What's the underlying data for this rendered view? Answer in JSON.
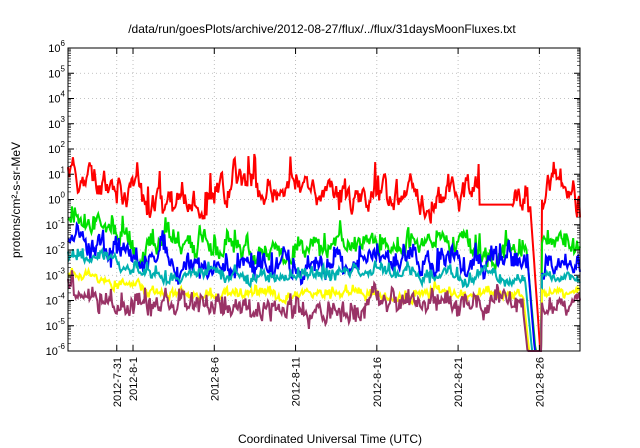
{
  "chart_data": {
    "type": "line",
    "title": "/data/run/goesPlots/archive/2012-08-27/flux/../flux/31daysMoonFluxes.txt",
    "xlabel": "Coordinated Universal Time (UTC)",
    "ylabel": "protons/cm²-s-sr-MeV",
    "yscale": "log",
    "ylim": [
      1e-06,
      1000000.0
    ],
    "ytick_exponents": [
      -6,
      -5,
      -4,
      -3,
      -2,
      -1,
      0,
      1,
      2,
      3,
      4,
      5,
      6
    ],
    "xlim_days": [
      -3.0,
      28.5
    ],
    "x_ticks": [
      {
        "day": 0,
        "label": "2012-7-31"
      },
      {
        "day": 1,
        "label": "2012-8-1"
      },
      {
        "day": 6,
        "label": "2012-8-6"
      },
      {
        "day": 11,
        "label": "2012-8-11"
      },
      {
        "day": 16,
        "label": "2012-8-16"
      },
      {
        "day": 21,
        "label": "2012-8-21"
      },
      {
        "day": 26,
        "label": "2012-8-26"
      }
    ],
    "grid": true,
    "series": [
      {
        "color": "#ff0000",
        "baseline_log": 0.1,
        "amplitude": 0.85,
        "spikiness": 0.22,
        "seed": 11,
        "drop_day": 25.4,
        "gap_end_day": 26.1,
        "recover_log": 0.25
      },
      {
        "color": "#00e000",
        "baseline_log": -1.9,
        "amplitude": 0.55,
        "spikiness": 0.45,
        "seed": 23,
        "drop_day": 25.2,
        "gap_end_day": 26.1,
        "recover_log": -1.8
      },
      {
        "color": "#0000ff",
        "baseline_log": -2.6,
        "amplitude": 0.55,
        "spikiness": 0.55,
        "seed": 37,
        "drop_day": 25.3,
        "gap_end_day": 26.1,
        "recover_log": -2.7
      },
      {
        "color": "#00b0b0",
        "baseline_log": -3.05,
        "amplitude": 0.3,
        "spikiness": 0.4,
        "seed": 51,
        "drop_day": 25.1,
        "gap_end_day": 26.1,
        "recover_log": -3.0
      },
      {
        "color": "#ffff00",
        "baseline_log": -3.8,
        "amplitude": 0.22,
        "spikiness": 0.55,
        "seed": 67,
        "drop_day": 25.0,
        "gap_end_day": 26.1,
        "recover_log": -3.75
      },
      {
        "color": "#993366",
        "baseline_log": -4.4,
        "amplitude": 0.45,
        "spikiness": 0.65,
        "seed": 79,
        "drop_day": 25.0,
        "gap_end_day": 26.1,
        "recover_log": -4.35
      }
    ]
  }
}
